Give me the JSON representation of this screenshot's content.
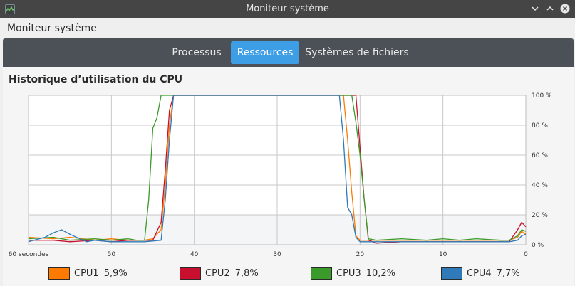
{
  "window": {
    "title": "Moniteur système",
    "app_icon": "system-monitor-icon",
    "controls": [
      "chevron-down-icon",
      "chevron-up-icon",
      "close-icon"
    ]
  },
  "header": {
    "app_title": "Moniteur système"
  },
  "tabs": [
    {
      "label": "Processus",
      "active": false
    },
    {
      "label": "Ressources",
      "active": true
    },
    {
      "label": "Systèmes de fichiers",
      "active": false
    }
  ],
  "cpu_section": {
    "heading": "Historique d’utilisation du CPU"
  },
  "colors": {
    "accent": "#3d9ee5",
    "cpu1": "#ff7b00",
    "cpu2": "#c8102e",
    "cpu3": "#3a9a2a",
    "cpu4": "#2f7ab8"
  },
  "legend": [
    {
      "name": "CPU1",
      "value": "5,9%",
      "color": "#ff7b00"
    },
    {
      "name": "CPU2",
      "value": "7,8%",
      "color": "#c8102e"
    },
    {
      "name": "CPU3",
      "value": "10,2%",
      "color": "#3a9a2a"
    },
    {
      "name": "CPU4",
      "value": "7,7%",
      "color": "#2f7ab8"
    }
  ],
  "chart_data": {
    "type": "line",
    "xlabel": "",
    "ylabel": "",
    "x_ticks": [
      "60 secondes",
      "50",
      "40",
      "30",
      "20",
      "10",
      "0"
    ],
    "y_ticks": [
      "0 %",
      "20 %",
      "40 %",
      "60 %",
      "80 %",
      "100 %"
    ],
    "xlim": [
      60,
      0
    ],
    "ylim": [
      0,
      100
    ],
    "grid": true,
    "legend_position": "bottom",
    "series": [
      {
        "name": "CPU1",
        "color": "#ff7b00",
        "points": [
          [
            60,
            5
          ],
          [
            57,
            4
          ],
          [
            55,
            5
          ],
          [
            52,
            3
          ],
          [
            50,
            4
          ],
          [
            48,
            3
          ],
          [
            46,
            3
          ],
          [
            45,
            4
          ],
          [
            44,
            10
          ],
          [
            43.5,
            40
          ],
          [
            43,
            80
          ],
          [
            42.5,
            100
          ],
          [
            22,
            100
          ],
          [
            21.5,
            70
          ],
          [
            21,
            35
          ],
          [
            20.5,
            6
          ],
          [
            20,
            3
          ],
          [
            18,
            3
          ],
          [
            15,
            3
          ],
          [
            12,
            3
          ],
          [
            10,
            3
          ],
          [
            8,
            3
          ],
          [
            6,
            3
          ],
          [
            3,
            3
          ],
          [
            2,
            3
          ],
          [
            1,
            5
          ],
          [
            0.5,
            9
          ],
          [
            0,
            7
          ]
        ]
      },
      {
        "name": "CPU2",
        "color": "#c8102e",
        "points": [
          [
            60,
            3
          ],
          [
            57,
            3
          ],
          [
            55,
            2
          ],
          [
            52,
            3
          ],
          [
            50,
            2
          ],
          [
            48,
            3
          ],
          [
            46,
            3
          ],
          [
            45,
            3
          ],
          [
            44,
            15
          ],
          [
            43.5,
            50
          ],
          [
            43,
            90
          ],
          [
            42.5,
            100
          ],
          [
            20.5,
            100
          ],
          [
            20,
            65
          ],
          [
            19.5,
            30
          ],
          [
            19,
            3
          ],
          [
            18,
            1
          ],
          [
            15,
            2
          ],
          [
            12,
            2
          ],
          [
            10,
            2
          ],
          [
            8,
            2
          ],
          [
            6,
            2
          ],
          [
            3,
            2
          ],
          [
            2,
            2
          ],
          [
            1,
            10
          ],
          [
            0.5,
            15
          ],
          [
            0,
            12
          ]
        ]
      },
      {
        "name": "CPU3",
        "color": "#3a9a2a",
        "points": [
          [
            60,
            4
          ],
          [
            57,
            5
          ],
          [
            55,
            3
          ],
          [
            52,
            4
          ],
          [
            50,
            3
          ],
          [
            48,
            4
          ],
          [
            47,
            3
          ],
          [
            46,
            3
          ],
          [
            45.5,
            30
          ],
          [
            45,
            78
          ],
          [
            44.5,
            85
          ],
          [
            44,
            100
          ],
          [
            21,
            100
          ],
          [
            20.5,
            82
          ],
          [
            20,
            60
          ],
          [
            19.5,
            30
          ],
          [
            19,
            4
          ],
          [
            18,
            3
          ],
          [
            15,
            4
          ],
          [
            12,
            3
          ],
          [
            10,
            4
          ],
          [
            8,
            3
          ],
          [
            6,
            4
          ],
          [
            3,
            3
          ],
          [
            2,
            3
          ],
          [
            1,
            6
          ],
          [
            0.5,
            10
          ],
          [
            0,
            9
          ]
        ]
      },
      {
        "name": "CPU4",
        "color": "#2f7ab8",
        "points": [
          [
            60,
            2
          ],
          [
            58,
            5
          ],
          [
            57,
            8
          ],
          [
            56,
            10
          ],
          [
            55,
            7
          ],
          [
            53,
            2
          ],
          [
            52,
            3
          ],
          [
            50,
            2
          ],
          [
            48,
            2
          ],
          [
            46,
            2
          ],
          [
            44,
            3
          ],
          [
            43.5,
            30
          ],
          [
            43,
            70
          ],
          [
            42.5,
            100
          ],
          [
            22.5,
            100
          ],
          [
            22,
            70
          ],
          [
            21.5,
            25
          ],
          [
            21,
            20
          ],
          [
            20.5,
            5
          ],
          [
            20,
            2
          ],
          [
            18,
            2
          ],
          [
            15,
            2
          ],
          [
            12,
            2
          ],
          [
            10,
            2
          ],
          [
            8,
            2
          ],
          [
            6,
            2
          ],
          [
            3,
            2
          ],
          [
            2,
            2
          ],
          [
            1,
            3
          ],
          [
            0.5,
            6
          ],
          [
            0,
            7
          ]
        ]
      }
    ]
  }
}
